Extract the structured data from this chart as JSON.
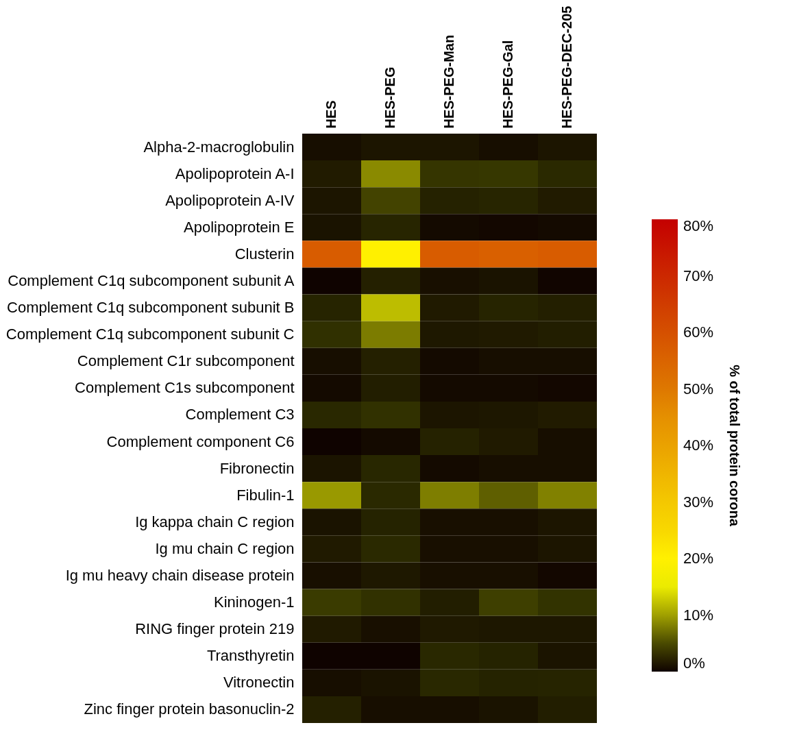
{
  "chart_data": {
    "type": "heatmap",
    "categories": [
      "HES",
      "HES-PEG",
      "HES-PEG-Man",
      "HES-PEG-Gal",
      "HES-PEG-DEC-205"
    ],
    "y_categories": [
      "Alpha-2-macroglobulin",
      "Apolipoprotein A-I",
      "Apolipoprotein A-IV",
      "Apolipoprotein E",
      "Clusterin",
      "Complement C1q subcomponent subunit A",
      "Complement C1q subcomponent subunit B",
      "Complement C1q subcomponent subunit C",
      "Complement C1r subcomponent",
      "Complement C1s subcomponent",
      "Complement C3",
      "Complement component C6",
      "Fibronectin",
      "Fibulin-1",
      "Ig kappa chain C region",
      "Ig mu chain C region",
      "Ig mu heavy chain disease protein",
      "Kininogen-1",
      "RING finger protein 219",
      "Transthyretin",
      "Vitronectin",
      "Zinc finger protein basonuclin-2"
    ],
    "cells": [
      [
        0.5,
        1.0,
        1.0,
        0.5,
        1.0
      ],
      [
        1.5,
        8.8,
        3.5,
        3.6,
        2.6
      ],
      [
        1.0,
        4.5,
        2.0,
        2.3,
        1.5
      ],
      [
        0.8,
        2.3,
        0.3,
        0.2,
        0.3
      ],
      [
        57,
        20,
        57,
        56,
        57
      ],
      [
        0,
        1.9,
        0.6,
        0.8,
        0.1
      ],
      [
        2.2,
        12,
        1.4,
        2.2,
        1.8
      ],
      [
        3.1,
        8.0,
        1.2,
        1.4,
        1.7
      ],
      [
        0.5,
        1.9,
        0.3,
        0.5,
        0.5
      ],
      [
        0.3,
        1.7,
        0.3,
        0.3,
        0.2
      ],
      [
        2.5,
        3.2,
        1.0,
        1.1,
        1.5
      ],
      [
        0,
        0.3,
        2.0,
        1.4,
        0.5
      ],
      [
        0.9,
        2.4,
        0.3,
        0.5,
        0.5
      ],
      [
        9.6,
        2.6,
        8.1,
        6.3,
        8.3
      ],
      [
        0.8,
        2.1,
        0.6,
        0.6,
        1.0
      ],
      [
        1.4,
        2.6,
        0.6,
        0.6,
        1.0
      ],
      [
        0.6,
        1.2,
        0.6,
        0.6,
        0.2
      ],
      [
        3.9,
        3.2,
        1.7,
        4.2,
        3.3
      ],
      [
        1.4,
        0.6,
        1.3,
        1.1,
        1.1
      ],
      [
        0,
        0,
        2.5,
        2.1,
        0.9
      ],
      [
        0.5,
        0.8,
        2.5,
        2.1,
        2.2
      ],
      [
        1.9,
        0.5,
        0.5,
        0.8,
        1.7
      ]
    ],
    "clabel": "% of total protein corona",
    "clim": [
      0,
      80
    ],
    "cticks": [
      {
        "value": 0,
        "label": "0%"
      },
      {
        "value": 10,
        "label": "10%"
      },
      {
        "value": 20,
        "label": "20%"
      },
      {
        "value": 30,
        "label": "30%"
      },
      {
        "value": 40,
        "label": "40%"
      },
      {
        "value": 50,
        "label": "50%"
      },
      {
        "value": 60,
        "label": "60%"
      },
      {
        "value": 70,
        "label": "70%"
      },
      {
        "value": 80,
        "label": "80%"
      }
    ]
  }
}
